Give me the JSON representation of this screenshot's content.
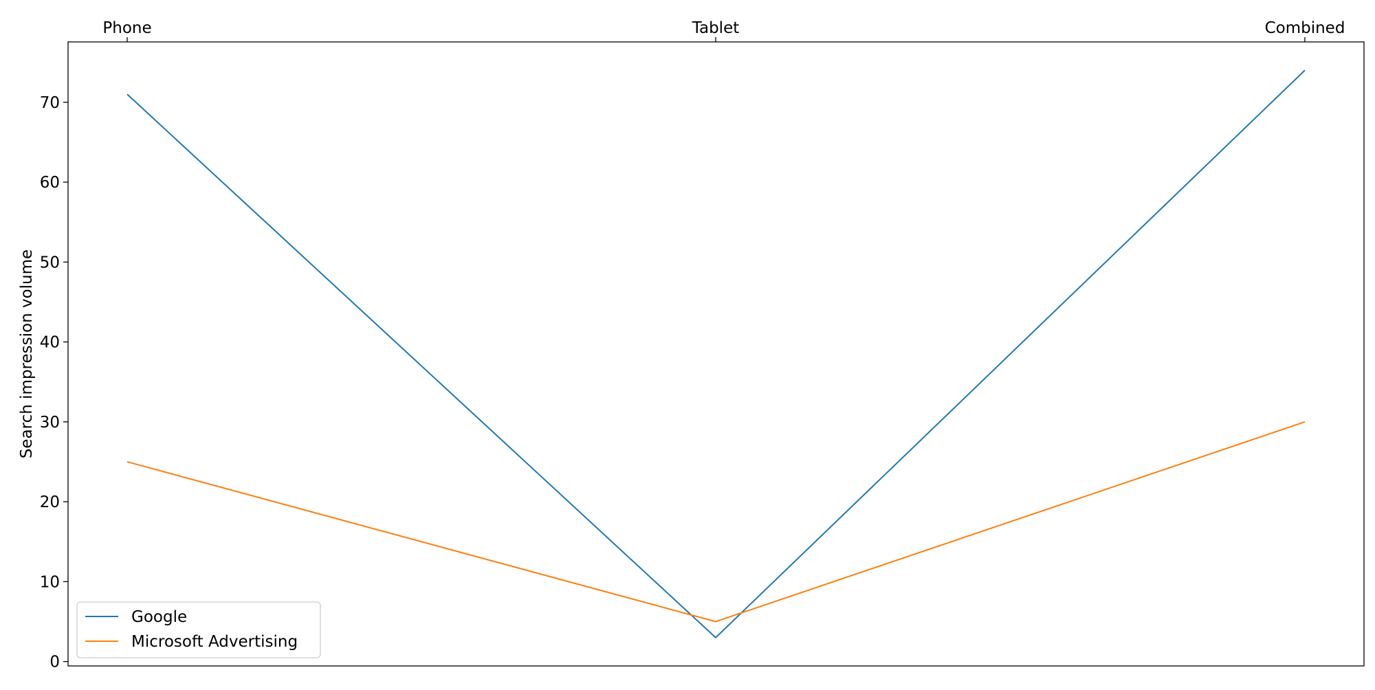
{
  "chart_data": {
    "type": "line",
    "categories": [
      "Phone",
      "Tablet",
      "Combined"
    ],
    "series": [
      {
        "name": "Google",
        "values": [
          71,
          3,
          74
        ],
        "color": "#1f77b4"
      },
      {
        "name": "Microsoft Advertising",
        "values": [
          25,
          5,
          30
        ],
        "color": "#ff7f0e"
      }
    ],
    "title": "",
    "xlabel": "",
    "ylabel": "Search impression volume",
    "ylim": [
      -0.55,
      77.55
    ],
    "yticks": [
      0,
      10,
      20,
      30,
      40,
      50,
      60,
      70
    ],
    "xaxis_position": "top",
    "grid": false,
    "legend_position": "lower-left"
  }
}
